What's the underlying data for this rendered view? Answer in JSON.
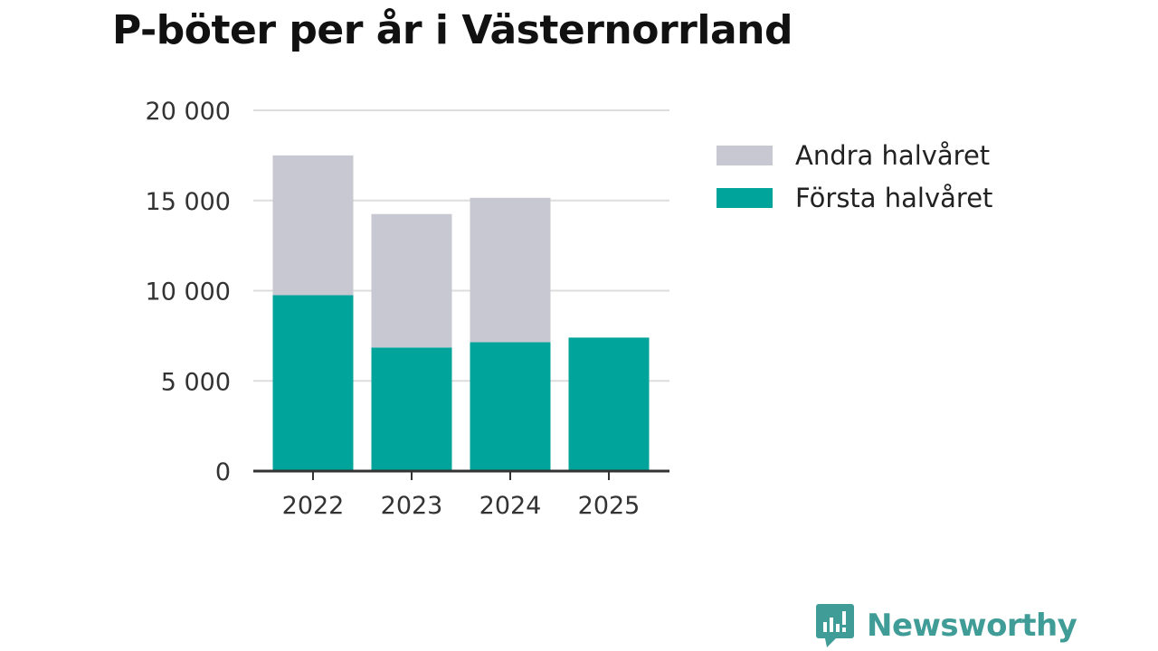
{
  "chart_data": {
    "type": "bar",
    "stacked": true,
    "title": "P-böter per år i Västernorrland",
    "categories": [
      "2022",
      "2023",
      "2024",
      "2025"
    ],
    "series": [
      {
        "name": "Första halvåret",
        "values": [
          9750,
          6850,
          7150,
          7400
        ],
        "color": "#00a49a"
      },
      {
        "name": "Andra halvåret",
        "values": [
          7750,
          7400,
          8000,
          0
        ],
        "color": "#c8c8d2"
      }
    ],
    "ylim": [
      0,
      20000
    ],
    "yticks": [
      0,
      5000,
      10000,
      15000,
      20000
    ],
    "ytick_labels": [
      "0",
      "5 000",
      "10 000",
      "15 000",
      "20 000"
    ],
    "xlabel": "",
    "ylabel": "",
    "grid": true,
    "legend_position": "right"
  },
  "legend": [
    {
      "label": "Andra halvåret",
      "color": "#c8c8d2"
    },
    {
      "label": "Första halvåret",
      "color": "#00a49a"
    }
  ],
  "brand": {
    "name": "Newsworthy",
    "color": "#3f9c97"
  }
}
